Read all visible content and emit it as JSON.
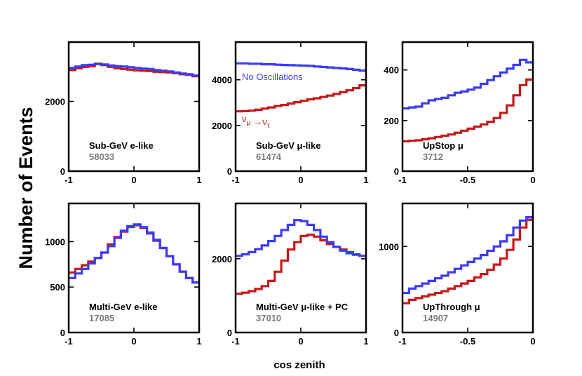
{
  "figure": {
    "ylabel": "Number of Events",
    "xlabel": "cos zenith"
  },
  "colors": {
    "no_oscillation": "#3c3cf5",
    "oscillation": "#c41a1a",
    "count_text": "#7a7a7a"
  },
  "chart_data": [
    {
      "type": "line",
      "label": "Sub-GeV e-like",
      "count": "58033",
      "xlim": [
        -1,
        1
      ],
      "ylim": [
        0,
        3700
      ],
      "xticks": [
        -1,
        0,
        1
      ],
      "xticklabels": [
        "-1",
        "0",
        "1"
      ],
      "yticks": [
        0,
        2000
      ],
      "yticklabels": [
        "0",
        "2000"
      ],
      "x_edges": [
        -1,
        -0.9,
        -0.8,
        -0.7,
        -0.6,
        -0.5,
        -0.4,
        -0.3,
        -0.2,
        -0.1,
        0,
        0.1,
        0.2,
        0.3,
        0.4,
        0.5,
        0.6,
        0.7,
        0.8,
        0.9,
        1
      ],
      "series": [
        {
          "name": "No Oscillations",
          "values": [
            2960,
            3000,
            3040,
            3050,
            3070,
            3060,
            3030,
            3010,
            3000,
            2980,
            2960,
            2940,
            2930,
            2900,
            2880,
            2860,
            2830,
            2800,
            2780,
            2740
          ]
        },
        {
          "name": "Oscillations",
          "values": [
            2900,
            2950,
            2990,
            3010,
            3080,
            3040,
            2990,
            2950,
            2930,
            2910,
            2890,
            2880,
            2870,
            2850,
            2840,
            2830,
            2810,
            2780,
            2760,
            2720
          ]
        }
      ]
    },
    {
      "type": "line",
      "label": "Sub-GeV μ-like",
      "count": "61474",
      "xlim": [
        -1,
        1
      ],
      "ylim": [
        0,
        5650
      ],
      "xticks": [
        -1,
        0,
        1
      ],
      "xticklabels": [
        "-1",
        "0",
        "1"
      ],
      "yticks": [
        0,
        2000,
        4000
      ],
      "yticklabels": [
        "0",
        "2000",
        "4000"
      ],
      "x_edges": [
        -1,
        -0.9,
        -0.8,
        -0.7,
        -0.6,
        -0.5,
        -0.4,
        -0.3,
        -0.2,
        -0.1,
        0,
        0.1,
        0.2,
        0.3,
        0.4,
        0.5,
        0.6,
        0.7,
        0.8,
        0.9,
        1
      ],
      "annotations": {
        "no_osc": "No Oscillations",
        "osc": "ν_μ → ν_τ"
      },
      "series": [
        {
          "name": "No Oscillations",
          "values": [
            4720,
            4720,
            4700,
            4700,
            4680,
            4680,
            4660,
            4650,
            4640,
            4630,
            4620,
            4610,
            4580,
            4560,
            4540,
            4520,
            4500,
            4470,
            4440,
            4400
          ]
        },
        {
          "name": "Oscillations",
          "values": [
            2620,
            2630,
            2650,
            2690,
            2740,
            2790,
            2850,
            2900,
            2960,
            3020,
            3080,
            3140,
            3190,
            3250,
            3310,
            3380,
            3460,
            3540,
            3640,
            3760
          ]
        }
      ]
    },
    {
      "type": "line",
      "label": "UpStop μ",
      "count": "3712",
      "xlim": [
        -1,
        0
      ],
      "ylim": [
        0,
        510
      ],
      "xticks": [
        -1,
        -0.5,
        0
      ],
      "xticklabels": [
        "-1",
        "-0.5",
        "0"
      ],
      "yticks": [
        0,
        200,
        400
      ],
      "yticklabels": [
        "0",
        "200",
        "400"
      ],
      "x_edges": [
        -1,
        -0.95,
        -0.9,
        -0.85,
        -0.8,
        -0.75,
        -0.7,
        -0.65,
        -0.6,
        -0.55,
        -0.5,
        -0.45,
        -0.4,
        -0.35,
        -0.3,
        -0.25,
        -0.2,
        -0.15,
        -0.1,
        -0.05,
        0
      ],
      "series": [
        {
          "name": "No Oscillations",
          "values": [
            248,
            252,
            255,
            268,
            280,
            285,
            290,
            300,
            310,
            315,
            322,
            330,
            345,
            360,
            375,
            390,
            405,
            420,
            440,
            430
          ]
        },
        {
          "name": "Oscillations",
          "values": [
            118,
            120,
            122,
            126,
            130,
            135,
            140,
            145,
            152,
            160,
            168,
            176,
            185,
            195,
            210,
            230,
            260,
            300,
            340,
            362
          ]
        }
      ]
    },
    {
      "type": "line",
      "label": "Multi-GeV e-like",
      "count": "17085",
      "xlim": [
        -1,
        1
      ],
      "ylim": [
        0,
        1420
      ],
      "xticks": [
        -1,
        0,
        1
      ],
      "xticklabels": [
        "-1",
        "0",
        "1"
      ],
      "yticks": [
        0,
        500,
        1000
      ],
      "yticklabels": [
        "0",
        "500",
        "1000"
      ],
      "x_edges": [
        -1,
        -0.9,
        -0.8,
        -0.7,
        -0.6,
        -0.5,
        -0.4,
        -0.3,
        -0.2,
        -0.1,
        0,
        0.1,
        0.2,
        0.3,
        0.4,
        0.5,
        0.6,
        0.7,
        0.8,
        0.9,
        1
      ],
      "series": [
        {
          "name": "No Oscillations",
          "values": [
            600,
            650,
            700,
            760,
            820,
            880,
            950,
            1040,
            1120,
            1170,
            1190,
            1160,
            1100,
            1020,
            930,
            840,
            750,
            670,
            600,
            550
          ]
        },
        {
          "name": "Oscillations",
          "values": [
            660,
            700,
            740,
            780,
            820,
            880,
            970,
            1050,
            1110,
            1160,
            1180,
            1150,
            1090,
            1010,
            930,
            840,
            750,
            670,
            600,
            550
          ]
        }
      ]
    },
    {
      "type": "line",
      "label": "Multi-GeV μ-like + PC",
      "count": "37010",
      "xlim": [
        -1,
        1
      ],
      "ylim": [
        0,
        3500
      ],
      "xticks": [
        -1,
        0,
        1
      ],
      "xticklabels": [
        "-1",
        "0",
        "1"
      ],
      "yticks": [
        0,
        2000
      ],
      "yticklabels": [
        "0",
        "2000"
      ],
      "x_edges": [
        -1,
        -0.9,
        -0.8,
        -0.7,
        -0.6,
        -0.5,
        -0.4,
        -0.3,
        -0.2,
        -0.1,
        0,
        0.1,
        0.2,
        0.3,
        0.4,
        0.5,
        0.6,
        0.7,
        0.8,
        0.9,
        1
      ],
      "series": [
        {
          "name": "No Oscillations",
          "values": [
            2080,
            2120,
            2180,
            2260,
            2360,
            2480,
            2620,
            2780,
            2920,
            3050,
            3020,
            2920,
            2780,
            2600,
            2450,
            2320,
            2220,
            2150,
            2110,
            2080
          ]
        },
        {
          "name": "Oscillations",
          "values": [
            1050,
            1080,
            1120,
            1180,
            1260,
            1400,
            1650,
            1950,
            2250,
            2450,
            2620,
            2650,
            2600,
            2500,
            2400,
            2320,
            2250,
            2180,
            2120,
            2080
          ]
        }
      ]
    },
    {
      "type": "line",
      "label": "UpThrough μ",
      "count": "14907",
      "xlim": [
        -1,
        0
      ],
      "ylim": [
        0,
        1500
      ],
      "xticks": [
        -1,
        -0.5,
        0
      ],
      "xticklabels": [
        "-1",
        "-0.5",
        "0"
      ],
      "yticks": [
        0,
        1000
      ],
      "yticklabels": [
        "0",
        "1000"
      ],
      "x_edges": [
        -1,
        -0.95,
        -0.9,
        -0.85,
        -0.8,
        -0.75,
        -0.7,
        -0.65,
        -0.6,
        -0.55,
        -0.5,
        -0.45,
        -0.4,
        -0.35,
        -0.3,
        -0.25,
        -0.2,
        -0.15,
        -0.1,
        -0.05,
        0
      ],
      "series": [
        {
          "name": "No Oscillations",
          "values": [
            460,
            510,
            540,
            570,
            600,
            630,
            660,
            700,
            740,
            780,
            820,
            860,
            900,
            950,
            1000,
            1060,
            1130,
            1220,
            1300,
            1340
          ]
        },
        {
          "name": "Oscillations",
          "values": [
            340,
            380,
            400,
            420,
            440,
            460,
            480,
            510,
            540,
            570,
            600,
            640,
            680,
            730,
            790,
            860,
            960,
            1080,
            1220,
            1310
          ]
        }
      ]
    }
  ]
}
